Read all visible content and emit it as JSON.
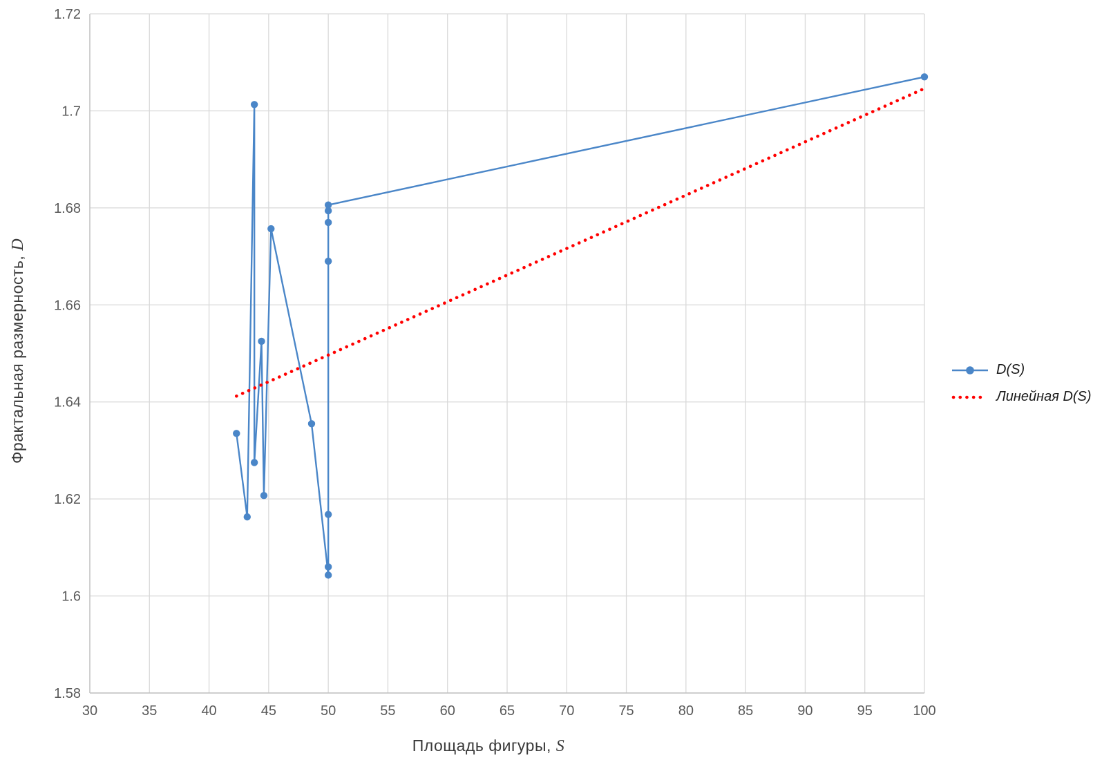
{
  "chart_data": {
    "type": "line",
    "title": "",
    "xlabel": {
      "text": "Площадь фигуры,",
      "var": "S"
    },
    "ylabel": {
      "text": "Фрактальная размерность,",
      "var": "D"
    },
    "xlim": [
      30,
      100
    ],
    "ylim": [
      1.58,
      1.72
    ],
    "grid": true,
    "legend_position": "right-middle",
    "x_ticks": [
      {
        "v": 30,
        "label": "30"
      },
      {
        "v": 35,
        "label": "35"
      },
      {
        "v": 40,
        "label": "40"
      },
      {
        "v": 45,
        "label": "45"
      },
      {
        "v": 50,
        "label": "50"
      },
      {
        "v": 55,
        "label": "55"
      },
      {
        "v": 60,
        "label": "60"
      },
      {
        "v": 65,
        "label": "65"
      },
      {
        "v": 70,
        "label": "70"
      },
      {
        "v": 75,
        "label": "75"
      },
      {
        "v": 80,
        "label": "80"
      },
      {
        "v": 85,
        "label": "85"
      },
      {
        "v": 90,
        "label": "90"
      },
      {
        "v": 95,
        "label": "95"
      },
      {
        "v": 100,
        "label": "100"
      }
    ],
    "y_ticks": [
      {
        "v": 1.58,
        "label": "1.58"
      },
      {
        "v": 1.6,
        "label": "1.6"
      },
      {
        "v": 1.62,
        "label": "1.62"
      },
      {
        "v": 1.64,
        "label": "1.64"
      },
      {
        "v": 1.66,
        "label": "1.66"
      },
      {
        "v": 1.68,
        "label": "1.68"
      },
      {
        "v": 1.7,
        "label": "1.7"
      },
      {
        "v": 1.72,
        "label": "1.72"
      }
    ],
    "series": [
      {
        "name": "D(S)",
        "style": "line_with_markers",
        "color": "#4a86c8",
        "points": [
          [
            42.3,
            1.6335
          ],
          [
            43.2,
            1.6163
          ],
          [
            43.8,
            1.7013
          ],
          [
            43.8,
            1.6275
          ],
          [
            44.4,
            1.6525
          ],
          [
            44.6,
            1.6207
          ],
          [
            45.2,
            1.6757
          ],
          [
            48.6,
            1.6355
          ],
          [
            50.0,
            1.6043
          ],
          [
            50.0,
            1.606
          ],
          [
            50.0,
            1.6168
          ],
          [
            50.0,
            1.669
          ],
          [
            50.0,
            1.677
          ],
          [
            50.0,
            1.6794
          ],
          [
            50.0,
            1.6806
          ],
          [
            100.0,
            1.707
          ]
        ]
      },
      {
        "name": "Линейная D(S)",
        "style": "dotted_trendline",
        "color": "#ff0000",
        "points": [
          [
            42.3,
            1.6412
          ],
          [
            100.0,
            1.7046
          ]
        ]
      }
    ],
    "colors": {
      "gridline": "#d9d9d9",
      "axis_line": "#c0c0c0",
      "tick_text": "#595959",
      "title_text": "#3a3a3a"
    }
  }
}
